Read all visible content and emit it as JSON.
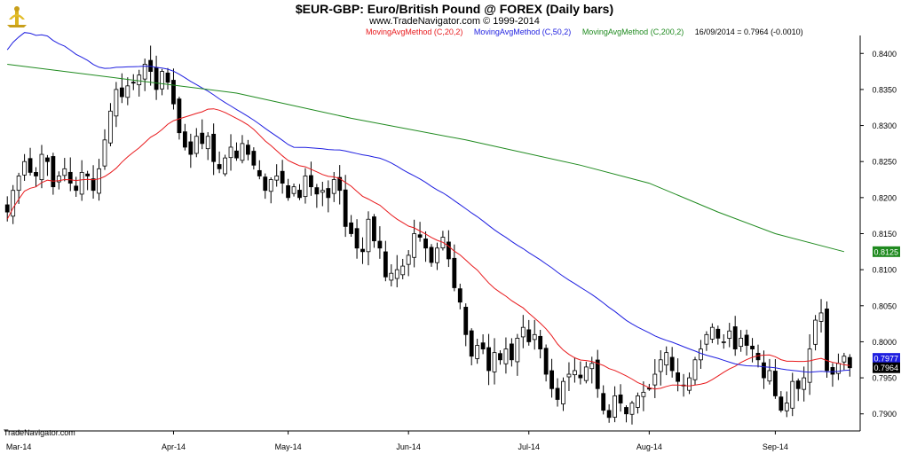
{
  "header": {
    "title": "$EUR-GBP:  Euro/British Pound @ FOREX  (Daily bars)",
    "subtitle": "www.TradeNavigator.com © 1999-2014",
    "indicators": [
      {
        "label": "MovingAvgMethod (C,20,2)",
        "color": "#e8191c"
      },
      {
        "label": "MovingAvgMethod (C,50,2)",
        "color": "#1f1fe0"
      },
      {
        "label": "MovingAvgMethod (C,200,2)",
        "color": "#1f8a1f"
      }
    ],
    "last_quote": "16/09/2014 = 0.7964 (-0.0010)"
  },
  "footer": {
    "brand": "TradeNavigator.com"
  },
  "chart_data": {
    "type": "candlestick",
    "title": "$EUR-GBP:  Euro/British Pound @ FOREX  (Daily bars)",
    "ylim": [
      0.788,
      0.842
    ],
    "y_ticks": [
      "0.8400",
      "0.8350",
      "0.8300",
      "0.8250",
      "0.8200",
      "0.8150",
      "0.8100",
      "0.8050",
      "0.8000",
      "0.7950",
      "0.7900"
    ],
    "x_tick_labels": [
      "Mar-14",
      "Apr-14",
      "May-14",
      "Jun-14",
      "Jul-14",
      "Aug-14",
      "Sep-14"
    ],
    "month_start_index": [
      2,
      29,
      49,
      70,
      91,
      112,
      134
    ],
    "approx_closes": [
      0.818,
      0.821,
      0.823,
      0.825,
      0.8235,
      0.823,
      0.826,
      0.825,
      0.8215,
      0.823,
      0.824,
      0.822,
      0.821,
      0.8235,
      0.823,
      0.821,
      0.824,
      0.828,
      0.832,
      0.835,
      0.834,
      0.8355,
      0.836,
      0.837,
      0.8385,
      0.8375,
      0.835,
      0.8375,
      0.836,
      0.833,
      0.829,
      0.827,
      0.826,
      0.8285,
      0.8275,
      0.8285,
      0.825,
      0.824,
      0.8255,
      0.827,
      0.8255,
      0.8275,
      0.826,
      0.8245,
      0.823,
      0.821,
      0.8225,
      0.823,
      0.822,
      0.82,
      0.8215,
      0.82,
      0.823,
      0.8215,
      0.8205,
      0.821,
      0.82,
      0.8225,
      0.821,
      0.816,
      0.815,
      0.813,
      0.8125,
      0.817,
      0.814,
      0.813,
      0.809,
      0.8095,
      0.81,
      0.8105,
      0.812,
      0.815,
      0.8145,
      0.813,
      0.811,
      0.813,
      0.8145,
      0.8115,
      0.8075,
      0.8055,
      0.801,
      0.798,
      0.7995,
      0.799,
      0.796,
      0.7985,
      0.7975,
      0.799,
      0.7975,
      0.8005,
      0.802,
      0.8,
      0.801,
      0.799,
      0.7955,
      0.7935,
      0.792,
      0.7945,
      0.7955,
      0.796,
      0.795,
      0.7965,
      0.797,
      0.7935,
      0.7905,
      0.7895,
      0.7925,
      0.7915,
      0.79,
      0.7915,
      0.7925,
      0.793,
      0.7935,
      0.7955,
      0.7975,
      0.7985,
      0.796,
      0.7945,
      0.794,
      0.795,
      0.7975,
      0.799,
      0.801,
      0.802,
      0.8005,
      0.8,
      0.8015,
      0.799,
      0.8005,
      0.7995,
      0.799,
      0.7975,
      0.795,
      0.796,
      0.7925,
      0.7905,
      0.7915,
      0.7945,
      0.7935,
      0.795,
      0.799,
      0.803,
      0.804,
      0.796,
      0.7955,
      0.797,
      0.798,
      0.7964
    ],
    "last_values": {
      "sma200": "0.8125",
      "sma50": "0.7977",
      "close": "0.7964"
    },
    "series": [
      {
        "name": "MovingAvgMethod (C,20,2)",
        "color": "#e8191c"
      },
      {
        "name": "MovingAvgMethod (C,50,2)",
        "color": "#1f1fe0"
      },
      {
        "name": "MovingAvgMethod (C,200,2)",
        "color": "#1f8a1f"
      }
    ],
    "ma200_path": [
      [
        0,
        0.8385
      ],
      [
        20,
        0.8365
      ],
      [
        40,
        0.8345
      ],
      [
        60,
        0.831
      ],
      [
        80,
        0.828
      ],
      [
        100,
        0.8245
      ],
      [
        112,
        0.822
      ],
      [
        124,
        0.818
      ],
      [
        134,
        0.815
      ],
      [
        146,
        0.8125
      ]
    ],
    "grid": false
  }
}
